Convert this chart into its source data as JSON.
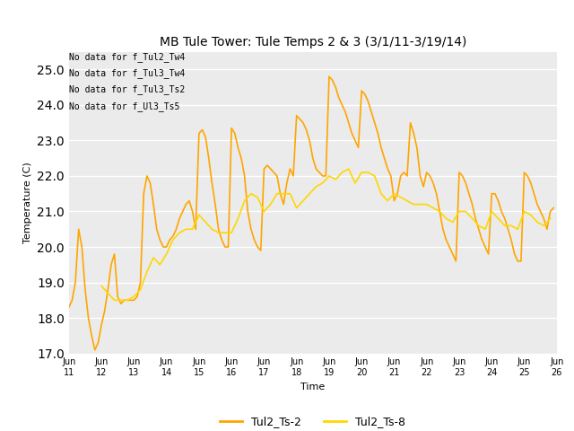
{
  "title": "MB Tule Tower: Tule Temps 2 & 3 (3/1/11-3/19/14)",
  "xlabel": "Time",
  "ylabel": "Temperature (C)",
  "ylim": [
    17.0,
    25.5
  ],
  "yticks": [
    17.0,
    18.0,
    19.0,
    20.0,
    21.0,
    22.0,
    23.0,
    24.0,
    25.0
  ],
  "bg_color": "#ebebeb",
  "line1_color": "#FFA500",
  "line2_color": "#FFD700",
  "legend_labels": [
    "Tul2_Ts-2",
    "Tul2_Ts-8"
  ],
  "nodata_texts": [
    "No data for f_Tul2_Tw4",
    "No data for f_Tul3_Tw4",
    "No data for f_Tul3_Ts2",
    "No data for f_Ul3_Ts5"
  ],
  "x_tick_labels": [
    "Jun 11",
    "Jun 12",
    "Jun 13",
    "Jun 14",
    "Jun 15",
    "Jun 16",
    "Jun 17",
    "Jun 18",
    "Jun 19",
    "Jun 20",
    "Jun 21",
    "Jun 22",
    "Jun 23",
    "Jun 24",
    "Jun 25",
    "Jun 26"
  ],
  "ts2_x": [
    11.0,
    11.1,
    11.2,
    11.3,
    11.4,
    11.5,
    11.6,
    11.7,
    11.8,
    11.9,
    12.0,
    12.1,
    12.2,
    12.3,
    12.4,
    12.5,
    12.6,
    12.7,
    12.8,
    12.9,
    13.0,
    13.1,
    13.2,
    13.3,
    13.4,
    13.5,
    13.6,
    13.7,
    13.8,
    13.9,
    14.0,
    14.1,
    14.2,
    14.3,
    14.4,
    14.5,
    14.6,
    14.7,
    14.8,
    14.9,
    15.0,
    15.1,
    15.2,
    15.3,
    15.4,
    15.5,
    15.6,
    15.7,
    15.8,
    15.9,
    16.0,
    16.1,
    16.2,
    16.3,
    16.4,
    16.5,
    16.6,
    16.7,
    16.8,
    16.9,
    17.0,
    17.1,
    17.2,
    17.3,
    17.4,
    17.5,
    17.6,
    17.7,
    17.8,
    17.9,
    18.0,
    18.1,
    18.2,
    18.3,
    18.4,
    18.5,
    18.6,
    18.7,
    18.8,
    18.9,
    19.0,
    19.1,
    19.2,
    19.3,
    19.4,
    19.5,
    19.6,
    19.7,
    19.8,
    19.9,
    20.0,
    20.1,
    20.2,
    20.3,
    20.4,
    20.5,
    20.6,
    20.7,
    20.8,
    20.9,
    21.0,
    21.1,
    21.2,
    21.3,
    21.4,
    21.5,
    21.6,
    21.7,
    21.8,
    21.9,
    22.0,
    22.1,
    22.2,
    22.3,
    22.4,
    22.5,
    22.6,
    22.7,
    22.8,
    22.9,
    23.0,
    23.1,
    23.2,
    23.3,
    23.4,
    23.5,
    23.6,
    23.7,
    23.8,
    23.9,
    24.0,
    24.1,
    24.2,
    24.3,
    24.4,
    24.5,
    24.6,
    24.7,
    24.8,
    24.9,
    25.0,
    25.1,
    25.2,
    25.3,
    25.4,
    25.5,
    25.6,
    25.7,
    25.8,
    25.9
  ],
  "ts2_y": [
    18.3,
    18.5,
    19.0,
    20.5,
    20.0,
    18.8,
    18.0,
    17.5,
    17.1,
    17.3,
    17.8,
    18.2,
    18.8,
    19.5,
    19.8,
    18.6,
    18.4,
    18.5,
    18.5,
    18.5,
    18.5,
    18.6,
    19.0,
    21.5,
    22.0,
    21.8,
    21.2,
    20.5,
    20.2,
    20.0,
    20.0,
    20.2,
    20.3,
    20.5,
    20.8,
    21.0,
    21.2,
    21.3,
    21.0,
    20.5,
    23.2,
    23.3,
    23.1,
    22.5,
    21.8,
    21.2,
    20.5,
    20.2,
    20.0,
    20.0,
    23.35,
    23.2,
    22.8,
    22.5,
    22.0,
    21.0,
    20.5,
    20.2,
    20.0,
    19.9,
    22.2,
    22.3,
    22.2,
    22.1,
    22.0,
    21.5,
    21.2,
    21.8,
    22.2,
    22.0,
    23.7,
    23.6,
    23.5,
    23.3,
    23.0,
    22.5,
    22.2,
    22.1,
    22.0,
    22.0,
    24.8,
    24.7,
    24.5,
    24.2,
    24.0,
    23.8,
    23.5,
    23.2,
    23.0,
    22.8,
    24.4,
    24.3,
    24.1,
    23.8,
    23.5,
    23.2,
    22.8,
    22.5,
    22.2,
    22.0,
    21.3,
    21.5,
    22.0,
    22.1,
    22.0,
    23.5,
    23.2,
    22.8,
    22.0,
    21.7,
    22.1,
    22.0,
    21.8,
    21.5,
    21.0,
    20.5,
    20.2,
    20.0,
    19.8,
    19.6,
    22.1,
    22.0,
    21.8,
    21.5,
    21.2,
    20.8,
    20.5,
    20.2,
    20.0,
    19.8,
    21.5,
    21.5,
    21.3,
    21.0,
    20.8,
    20.5,
    20.2,
    19.8,
    19.6,
    19.6,
    22.1,
    22.0,
    21.8,
    21.5,
    21.2,
    21.0,
    20.8,
    20.5,
    21.0,
    21.1
  ],
  "ts8_x": [
    12.0,
    12.2,
    12.4,
    12.6,
    12.8,
    13.0,
    13.2,
    13.4,
    13.6,
    13.8,
    14.0,
    14.2,
    14.4,
    14.6,
    14.8,
    15.0,
    15.2,
    15.4,
    15.6,
    15.8,
    16.0,
    16.2,
    16.4,
    16.6,
    16.8,
    17.0,
    17.2,
    17.4,
    17.6,
    17.8,
    18.0,
    18.2,
    18.4,
    18.6,
    18.8,
    19.0,
    19.2,
    19.4,
    19.6,
    19.8,
    20.0,
    20.2,
    20.4,
    20.6,
    20.8,
    21.0,
    21.2,
    21.4,
    21.6,
    21.8,
    22.0,
    22.2,
    22.4,
    22.6,
    22.8,
    23.0,
    23.2,
    23.4,
    23.6,
    23.8,
    24.0,
    24.2,
    24.4,
    24.6,
    24.8,
    25.0,
    25.2,
    25.4,
    25.6,
    25.8
  ],
  "ts8_y": [
    18.9,
    18.7,
    18.5,
    18.5,
    18.5,
    18.6,
    18.8,
    19.3,
    19.7,
    19.5,
    19.8,
    20.2,
    20.4,
    20.5,
    20.5,
    20.9,
    20.7,
    20.5,
    20.4,
    20.4,
    20.4,
    20.8,
    21.3,
    21.5,
    21.4,
    21.0,
    21.2,
    21.5,
    21.5,
    21.5,
    21.1,
    21.3,
    21.5,
    21.7,
    21.8,
    22.0,
    21.9,
    22.1,
    22.2,
    21.8,
    22.1,
    22.1,
    22.0,
    21.5,
    21.3,
    21.5,
    21.4,
    21.3,
    21.2,
    21.2,
    21.2,
    21.1,
    21.0,
    20.8,
    20.7,
    21.0,
    21.0,
    20.8,
    20.6,
    20.5,
    21.0,
    20.8,
    20.6,
    20.6,
    20.5,
    21.0,
    20.9,
    20.7,
    20.6,
    20.8
  ]
}
